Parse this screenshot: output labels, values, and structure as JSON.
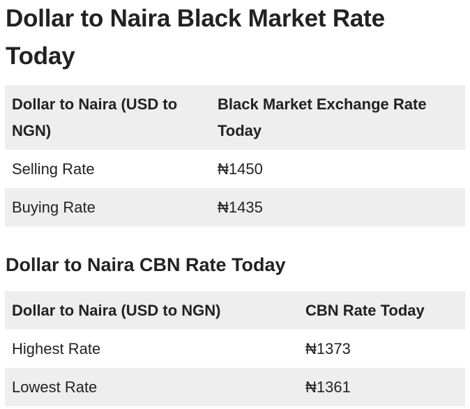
{
  "heading": "Dollar to Naira Black Market Rate Today",
  "black_market_table": {
    "headers": [
      "Dollar to Naira (USD to NGN)",
      "Black Market Exchange Rate Today"
    ],
    "rows": [
      [
        "Selling Rate",
        "₦1450"
      ],
      [
        "Buying Rate",
        "₦1435"
      ]
    ]
  },
  "cbn_heading": "Dollar to Naira CBN Rate Today",
  "cbn_table": {
    "headers": [
      "Dollar to Naira (USD to NGN)",
      "CBN Rate Today"
    ],
    "rows": [
      [
        "Highest Rate",
        "₦1373"
      ],
      [
        "Lowest Rate",
        "₦1361"
      ]
    ]
  }
}
